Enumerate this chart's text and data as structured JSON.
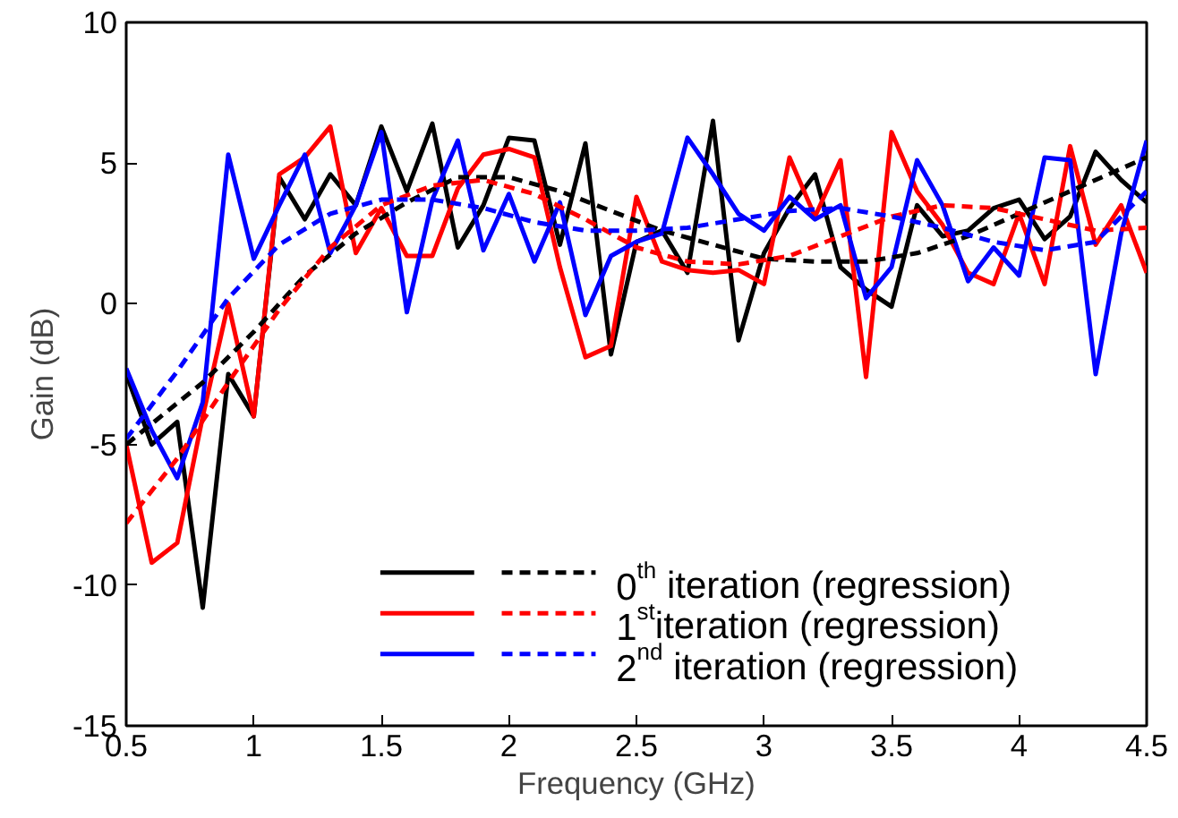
{
  "chart_data": {
    "type": "line",
    "xlabel": "Frequency (GHz)",
    "ylabel": "Gain (dB)",
    "xlim": [
      0.5,
      4.5
    ],
    "xticks": [
      0.5,
      1,
      1.5,
      2,
      2.5,
      3,
      3.5,
      4,
      4.5
    ],
    "ylim": [
      -15,
      10
    ],
    "yticks": [
      -15,
      -10,
      -5,
      0,
      5,
      10
    ],
    "grid": false,
    "legend": "bottom right",
    "line_style": "solid",
    "x": [
      0.5,
      0.6,
      0.7,
      0.8,
      0.9,
      1.0,
      1.1,
      1.2,
      1.3,
      1.4,
      1.5,
      1.6,
      1.7,
      1.8,
      1.9,
      2.0,
      2.1,
      2.2,
      2.3,
      2.4,
      2.5,
      2.6,
      2.7,
      2.8,
      2.9,
      3.0,
      3.1,
      3.2,
      3.3,
      3.4,
      3.5,
      3.6,
      3.7,
      3.8,
      3.9,
      4.0,
      4.1,
      4.2,
      4.3,
      4.4,
      4.5
    ],
    "series": [
      {
        "name": "0$^{th}$ iteration (regression)",
        "color": "#000000",
        "values": [
          -2.5,
          -5,
          -4.2,
          -10.8,
          -2.5,
          -4,
          4.5,
          3,
          4.6,
          3.5,
          6.3,
          4,
          6.4,
          2,
          3.5,
          5.9,
          5.8,
          2.1,
          5.7,
          -1.8,
          2.2,
          2.6,
          1.1,
          6.5,
          -1.3,
          1.8,
          3.4,
          4.6,
          1.3,
          0.5,
          -0.1,
          3.5,
          2.4,
          2.6,
          3.4,
          3.7,
          2.3,
          3.1,
          5.4,
          4.4,
          3.6
        ]
      },
      {
        "name": "1$^{st}$iteration (regression)",
        "color": "#ff0000",
        "values": [
          -5,
          -9.2,
          -8.5,
          -4,
          0,
          -4,
          4.6,
          5.2,
          6.3,
          1.8,
          3.4,
          1.7,
          1.7,
          4.1,
          5.3,
          5.5,
          5.2,
          1.3,
          -1.9,
          -1.5,
          3.8,
          1.5,
          1.2,
          1.1,
          1.2,
          0.7,
          5.2,
          3.1,
          5.1,
          -2.6,
          6.1,
          4,
          2.8,
          1.1,
          0.7,
          3.2,
          0.7,
          5.6,
          2.1,
          3.5,
          1.1
        ]
      },
      {
        "name": "2$^{nd}$ iteration (regression)",
        "color": "#0000ff",
        "values": [
          -2.3,
          -4.5,
          -6.2,
          -3.5,
          5.3,
          1.6,
          3.5,
          5.3,
          1.8,
          3.5,
          6.1,
          -0.3,
          3.7,
          5.8,
          1.9,
          3.9,
          1.5,
          3.6,
          -0.4,
          1.7,
          2.2,
          2.5,
          5.9,
          4.6,
          3.2,
          2.6,
          3.8,
          3,
          3.5,
          0.2,
          1.3,
          5.1,
          3.5,
          0.8,
          2,
          1,
          5.2,
          5.1,
          -2.5,
          2.5,
          5.8
        ]
      },
      {
        "color": "#000000",
        "line_style": "dashed",
        "x": [
          0.5,
          0.8,
          1.0,
          1.2,
          1.4,
          1.6,
          1.8,
          2.0,
          2.2,
          2.4,
          2.6,
          2.8,
          3.0,
          3.2,
          3.4,
          3.6,
          3.8,
          4.0,
          4.2,
          4.4,
          4.5
        ],
        "values": [
          -5,
          -2.8,
          -1,
          1,
          2.5,
          3.6,
          4.5,
          4.5,
          4,
          3.3,
          2.6,
          2.1,
          1.6,
          1.5,
          1.5,
          1.8,
          2.4,
          3.2,
          4,
          4.8,
          5.2
        ]
      },
      {
        "color": "#ff0000",
        "line_style": "dashed",
        "x": [
          0.5,
          0.7,
          0.9,
          1.1,
          1.3,
          1.5,
          1.7,
          1.9,
          2.1,
          2.3,
          2.5,
          2.7,
          2.9,
          3.1,
          3.3,
          3.5,
          3.7,
          3.9,
          4.1,
          4.3,
          4.5
        ],
        "values": [
          -7.8,
          -5.5,
          -2.8,
          -0.2,
          2,
          3.5,
          4.2,
          4.4,
          3.9,
          3,
          2,
          1.5,
          1.4,
          1.7,
          2.4,
          3.1,
          3.5,
          3.4,
          3,
          2.6,
          2.7
        ]
      },
      {
        "color": "#0000ff",
        "line_style": "dashed",
        "x": [
          0.5,
          0.7,
          0.9,
          1.1,
          1.3,
          1.5,
          1.7,
          1.9,
          2.1,
          2.3,
          2.5,
          2.7,
          2.9,
          3.1,
          3.3,
          3.5,
          3.7,
          3.9,
          4.1,
          4.3,
          4.5
        ],
        "values": [
          -4.8,
          -2.4,
          0.2,
          2.1,
          3.2,
          3.7,
          3.7,
          3.4,
          2.9,
          2.6,
          2.6,
          2.7,
          3,
          3.3,
          3.4,
          3.1,
          2.7,
          2.2,
          1.9,
          2.2,
          4
        ]
      }
    ]
  }
}
